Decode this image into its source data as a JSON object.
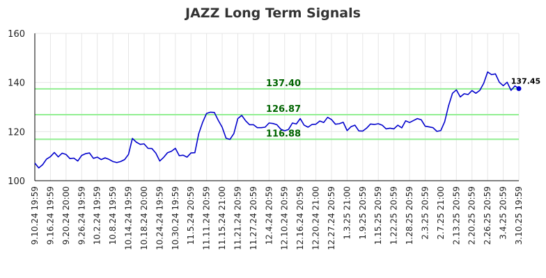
{
  "chart_data": {
    "type": "line",
    "title": "JAZZ Long Term Signals",
    "xlabel": "",
    "ylabel": "",
    "ylim": [
      100,
      160
    ],
    "yticks": [
      100,
      120,
      140,
      160
    ],
    "grid": true,
    "x_tick_labels": [
      "9.10.24 19:59",
      "9.16.24 19:59",
      "9.20.24 20:00",
      "9.26.24 19:59",
      "10.2.24 19:59",
      "10.8.24 19:59",
      "10.14.24 19:59",
      "10.18.24 20:00",
      "10.24.24 19:59",
      "10.30.24 19:59",
      "11.5.24 20:59",
      "11.11.24 20:59",
      "11.15.24 21:00",
      "11.21.24 20:59",
      "11.27.24 20:59",
      "12.4.24 20:59",
      "12.10.24 20:59",
      "12.16.24 20:59",
      "12.20.24 21:00",
      "12.27.24 20:59",
      "1.3.25 21:00",
      "1.9.25 20:59",
      "1.15.25 20:59",
      "1.22.25 20:59",
      "1.28.25 20:59",
      "2.3.25 20:59",
      "2.7.25 21:00",
      "2.13.25 20:59",
      "2.20.25 20:59",
      "2.26.25 20:59",
      "3.4.25 20:59",
      "3.10.25 19:59"
    ],
    "levels": [
      {
        "value": 137.4,
        "label": "137.40"
      },
      {
        "value": 126.87,
        "label": "126.87"
      },
      {
        "value": 116.88,
        "label": "116.88"
      }
    ],
    "last_value_label": "137.45",
    "colors": {
      "line": "#0000cc",
      "level_line": "#90ee90",
      "level_text": "#006400",
      "grid": "#e6e6e6"
    },
    "series": [
      {
        "values": [
          107.2,
          105.2,
          106.5,
          108.8,
          109.8,
          111.5,
          109.7,
          111.2,
          110.7,
          109.0,
          109.2,
          108.0,
          110.3,
          111.0,
          111.3,
          109.1,
          109.6,
          108.6,
          109.3,
          108.7,
          107.8,
          107.4,
          107.8,
          108.6,
          110.7,
          117.2,
          115.7,
          114.8,
          115.0,
          113.2,
          113.1,
          111.2,
          108.0,
          109.5,
          111.4,
          112.0,
          113.2,
          110.2,
          110.4,
          109.6,
          111.3,
          111.4,
          119.2,
          123.8,
          127.4,
          127.9,
          127.8,
          124.6,
          121.8,
          117.3,
          116.8,
          119.2,
          125.3,
          126.6,
          124.4,
          122.8,
          122.8,
          121.6,
          121.6,
          121.8,
          123.5,
          123.3,
          122.8,
          121.0,
          120.3,
          120.9,
          123.5,
          123.1,
          125.3,
          122.6,
          121.8,
          122.9,
          123.0,
          124.3,
          123.7,
          125.8,
          124.9,
          123.0,
          123.2,
          123.8,
          120.4,
          122.0,
          122.6,
          120.3,
          120.2,
          121.4,
          123.1,
          122.9,
          123.2,
          122.6,
          121.1,
          121.4,
          121.1,
          122.6,
          121.5,
          124.4,
          123.7,
          124.5,
          125.3,
          124.8,
          122.2,
          121.9,
          121.6,
          120.1,
          120.4,
          124.0,
          130.5,
          135.6,
          137.0,
          134.1,
          135.4,
          135.1,
          136.7,
          135.6,
          136.8,
          139.7,
          144.3,
          143.2,
          143.5,
          140.1,
          138.7,
          140.1,
          136.8,
          138.6,
          137.5
        ]
      }
    ]
  }
}
